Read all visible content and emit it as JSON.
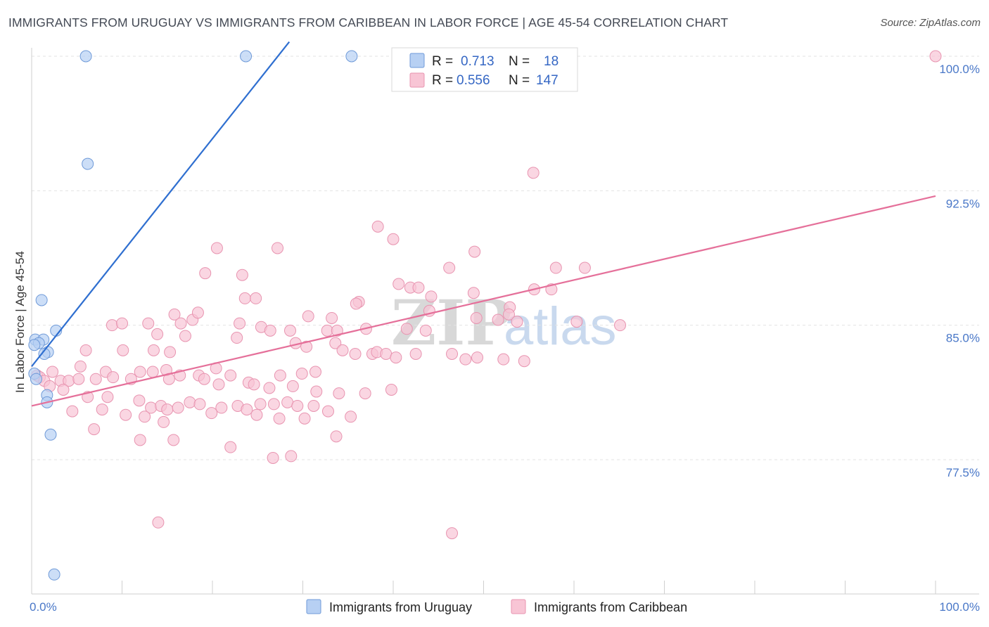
{
  "title": "IMMIGRANTS FROM URUGUAY VS IMMIGRANTS FROM CARIBBEAN IN LABOR FORCE | AGE 45-54 CORRELATION CHART",
  "source": "Source: ZipAtlas.com",
  "watermark": {
    "zip": "ZIP",
    "atlas": "atlas"
  },
  "colors": {
    "uruguay_fill": "#b7d0f3",
    "uruguay_stroke": "#6f9ad8",
    "uruguay_line": "#2f6fd0",
    "caribbean_fill": "#f8c5d5",
    "caribbean_stroke": "#e894b0",
    "caribbean_line": "#e5709a",
    "tick_label": "#4a78c8",
    "grid": "#e3e3e3"
  },
  "legend": {
    "rows": [
      {
        "r_label": "R = ",
        "r_value": "0.713",
        "n_label": "N = ",
        "n_value": "18"
      },
      {
        "r_label": "R = ",
        "r_value": "0.556",
        "n_label": "N = ",
        "n_value": "147"
      }
    ]
  },
  "chart_data": {
    "type": "scatter",
    "title": "IMMIGRANTS FROM URUGUAY VS IMMIGRANTS FROM CARIBBEAN IN LABOR FORCE | AGE 45-54 CORRELATION CHART",
    "xlabel": "",
    "ylabel": "In Labor Force | Age 45-54",
    "xlim": [
      0,
      100
    ],
    "ylim": [
      71.0,
      101.0
    ],
    "x_tick_labels": [
      {
        "value": 0,
        "label": "0.0%"
      },
      {
        "value": 100,
        "label": "100.0%"
      }
    ],
    "y_tick_labels": [
      {
        "value": 77.5,
        "label": "77.5%"
      },
      {
        "value": 85.0,
        "label": "85.0%"
      },
      {
        "value": 92.5,
        "label": "92.5%"
      },
      {
        "value": 100.0,
        "label": "100.0%"
      }
    ],
    "grid": true,
    "legend_position": "top-center",
    "series": [
      {
        "name": "Immigrants from Uruguay",
        "r": 0.713,
        "n": 18,
        "trend": [
          [
            0.0,
            82.7
          ],
          [
            28.5,
            100.8
          ]
        ],
        "points": [
          [
            6.0,
            100.0
          ],
          [
            23.7,
            100.0
          ],
          [
            35.4,
            100.0
          ],
          [
            6.2,
            94.0
          ],
          [
            1.1,
            86.4
          ],
          [
            2.7,
            84.7
          ],
          [
            0.4,
            84.2
          ],
          [
            1.3,
            84.2
          ],
          [
            0.8,
            84.0
          ],
          [
            0.3,
            83.9
          ],
          [
            1.8,
            83.5
          ],
          [
            1.4,
            83.4
          ],
          [
            0.3,
            82.3
          ],
          [
            0.5,
            82.0
          ],
          [
            1.7,
            81.1
          ],
          [
            1.7,
            80.7
          ],
          [
            2.1,
            78.9
          ],
          [
            2.5,
            71.1
          ]
        ]
      },
      {
        "name": "Immigrants from Caribbean",
        "r": 0.556,
        "n": 147,
        "trend": [
          [
            0.0,
            80.5
          ],
          [
            100.0,
            92.2
          ]
        ],
        "points": [
          [
            100.0,
            100.0
          ],
          [
            55.5,
            93.5
          ],
          [
            38.3,
            90.5
          ],
          [
            40.0,
            89.8
          ],
          [
            20.5,
            89.3
          ],
          [
            27.2,
            89.3
          ],
          [
            49.0,
            89.1
          ],
          [
            46.2,
            88.2
          ],
          [
            58.0,
            88.2
          ],
          [
            61.2,
            88.2
          ],
          [
            19.2,
            87.9
          ],
          [
            23.3,
            87.8
          ],
          [
            40.6,
            87.3
          ],
          [
            41.9,
            87.1
          ],
          [
            42.8,
            87.1
          ],
          [
            55.6,
            87.0
          ],
          [
            57.5,
            87.0
          ],
          [
            44.2,
            86.6
          ],
          [
            48.9,
            86.8
          ],
          [
            23.6,
            86.5
          ],
          [
            24.8,
            86.5
          ],
          [
            36.2,
            86.3
          ],
          [
            35.9,
            86.2
          ],
          [
            52.9,
            86.0
          ],
          [
            44.0,
            85.8
          ],
          [
            12.9,
            85.1
          ],
          [
            15.8,
            85.6
          ],
          [
            17.8,
            85.3
          ],
          [
            18.4,
            85.7
          ],
          [
            23.0,
            85.1
          ],
          [
            30.6,
            85.5
          ],
          [
            33.2,
            85.4
          ],
          [
            49.2,
            85.4
          ],
          [
            51.6,
            85.3
          ],
          [
            52.8,
            85.6
          ],
          [
            53.7,
            85.2
          ],
          [
            60.3,
            85.2
          ],
          [
            65.1,
            85.0
          ],
          [
            8.9,
            85.0
          ],
          [
            10.0,
            85.1
          ],
          [
            16.5,
            85.1
          ],
          [
            25.4,
            84.9
          ],
          [
            26.4,
            84.7
          ],
          [
            28.6,
            84.7
          ],
          [
            32.7,
            84.7
          ],
          [
            33.8,
            84.7
          ],
          [
            37.0,
            84.8
          ],
          [
            41.5,
            84.8
          ],
          [
            43.6,
            84.7
          ],
          [
            13.9,
            84.5
          ],
          [
            17.0,
            84.4
          ],
          [
            22.7,
            84.3
          ],
          [
            29.2,
            84.0
          ],
          [
            33.6,
            84.0
          ],
          [
            30.4,
            83.8
          ],
          [
            6.0,
            83.6
          ],
          [
            10.1,
            83.6
          ],
          [
            13.5,
            83.6
          ],
          [
            15.3,
            83.5
          ],
          [
            34.4,
            83.6
          ],
          [
            35.8,
            83.4
          ],
          [
            37.7,
            83.4
          ],
          [
            38.2,
            83.5
          ],
          [
            39.2,
            83.4
          ],
          [
            40.3,
            83.2
          ],
          [
            42.5,
            83.4
          ],
          [
            46.5,
            83.4
          ],
          [
            48.0,
            83.1
          ],
          [
            49.3,
            83.2
          ],
          [
            52.2,
            83.1
          ],
          [
            54.5,
            83.0
          ],
          [
            5.4,
            82.7
          ],
          [
            8.2,
            82.4
          ],
          [
            12.0,
            82.4
          ],
          [
            13.4,
            82.4
          ],
          [
            14.9,
            82.5
          ],
          [
            18.5,
            82.2
          ],
          [
            20.4,
            82.6
          ],
          [
            22.0,
            82.2
          ],
          [
            27.5,
            82.2
          ],
          [
            29.9,
            82.3
          ],
          [
            31.4,
            82.4
          ],
          [
            2.3,
            82.4
          ],
          [
            0.6,
            82.2
          ],
          [
            0.9,
            82.1
          ],
          [
            1.4,
            81.9
          ],
          [
            3.2,
            81.9
          ],
          [
            4.1,
            81.9
          ],
          [
            5.2,
            82.0
          ],
          [
            7.1,
            82.0
          ],
          [
            9.0,
            82.1
          ],
          [
            11.0,
            82.0
          ],
          [
            15.2,
            82.0
          ],
          [
            16.4,
            82.2
          ],
          [
            19.1,
            82.0
          ],
          [
            20.7,
            81.7
          ],
          [
            24.0,
            81.8
          ],
          [
            24.6,
            81.7
          ],
          [
            26.3,
            81.5
          ],
          [
            28.9,
            81.6
          ],
          [
            31.5,
            81.3
          ],
          [
            34.0,
            81.2
          ],
          [
            36.9,
            81.2
          ],
          [
            39.8,
            81.4
          ],
          [
            2.0,
            81.6
          ],
          [
            3.5,
            81.4
          ],
          [
            6.2,
            81.0
          ],
          [
            8.4,
            81.0
          ],
          [
            11.9,
            80.8
          ],
          [
            13.2,
            80.4
          ],
          [
            14.3,
            80.5
          ],
          [
            15.0,
            80.3
          ],
          [
            16.2,
            80.4
          ],
          [
            17.5,
            80.7
          ],
          [
            18.6,
            80.6
          ],
          [
            21.0,
            80.4
          ],
          [
            22.8,
            80.5
          ],
          [
            23.8,
            80.3
          ],
          [
            25.3,
            80.6
          ],
          [
            26.8,
            80.6
          ],
          [
            28.3,
            80.7
          ],
          [
            29.4,
            80.5
          ],
          [
            31.2,
            80.5
          ],
          [
            4.5,
            80.2
          ],
          [
            7.8,
            80.3
          ],
          [
            10.4,
            80.0
          ],
          [
            12.5,
            79.9
          ],
          [
            14.6,
            79.6
          ],
          [
            19.9,
            80.1
          ],
          [
            24.9,
            80.0
          ],
          [
            27.4,
            79.8
          ],
          [
            30.2,
            79.8
          ],
          [
            32.8,
            80.2
          ],
          [
            35.3,
            79.9
          ],
          [
            6.9,
            79.2
          ],
          [
            12.0,
            78.6
          ],
          [
            15.7,
            78.6
          ],
          [
            22.0,
            78.2
          ],
          [
            33.7,
            78.8
          ],
          [
            26.7,
            77.6
          ],
          [
            28.7,
            77.7
          ],
          [
            14.0,
            74.0
          ],
          [
            46.5,
            73.4
          ]
        ]
      }
    ]
  },
  "bottom_legend": [
    {
      "label": "Immigrants from Uruguay"
    },
    {
      "label": "Immigrants from Caribbean"
    }
  ]
}
